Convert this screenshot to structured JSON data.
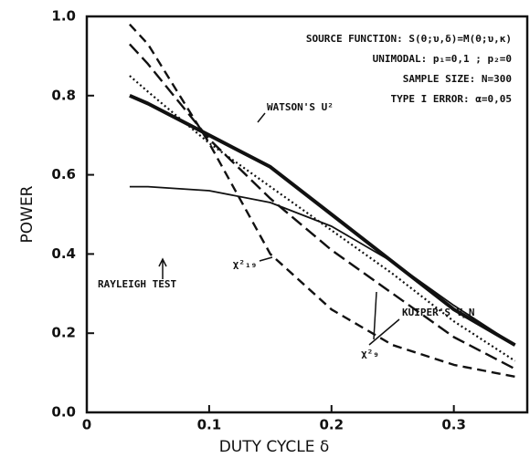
{
  "chart_data": {
    "type": "line",
    "xlabel": "DUTY CYCLE δ",
    "ylabel": "POWER",
    "annotations": [
      "SOURCE FUNCTION: S(θ;υ,δ)=M(θ;υ,κ)",
      "UNIMODAL: p₁=0,1 ; p₂=0",
      "SAMPLE SIZE: N=300",
      "TYPE I ERROR: α=0,05"
    ],
    "x": [
      0.035,
      0.05,
      0.1,
      0.15,
      0.2,
      0.25,
      0.3,
      0.35
    ],
    "series": [
      {
        "name": "WATSON'S U²",
        "color": "#111111",
        "style": "thick",
        "values": [
          0.8,
          0.78,
          0.7,
          0.62,
          0.5,
          0.38,
          0.26,
          0.17
        ]
      },
      {
        "name": "RAYLEIGH TEST",
        "color": "#111111",
        "style": "solid",
        "values": [
          0.57,
          0.57,
          0.56,
          0.53,
          0.47,
          0.38,
          0.27,
          0.17
        ]
      },
      {
        "name": "KUIPER'S V_N",
        "color": "#111111",
        "style": "dotted",
        "values": [
          0.85,
          0.81,
          0.68,
          0.57,
          0.46,
          0.35,
          0.23,
          0.13
        ]
      },
      {
        "name": "χ²₉",
        "color": "#111111",
        "style": "longdash",
        "values": [
          0.93,
          0.88,
          0.69,
          0.54,
          0.41,
          0.3,
          0.19,
          0.11
        ]
      },
      {
        "name": "χ²₁₉",
        "color": "#111111",
        "style": "dash",
        "values": [
          0.98,
          0.93,
          0.68,
          0.4,
          0.26,
          0.17,
          0.12,
          0.09
        ]
      }
    ],
    "xlim": [
      0,
      0.36
    ],
    "ylim": [
      0,
      1
    ],
    "xticks": [
      0,
      0.1,
      0.2,
      0.3
    ],
    "yticks": [
      {
        "value": 0,
        "label": "0.0"
      },
      0.2,
      0.4,
      0.6,
      0.8,
      {
        "value": 1,
        "label": "1.0"
      }
    ],
    "grid": false
  }
}
